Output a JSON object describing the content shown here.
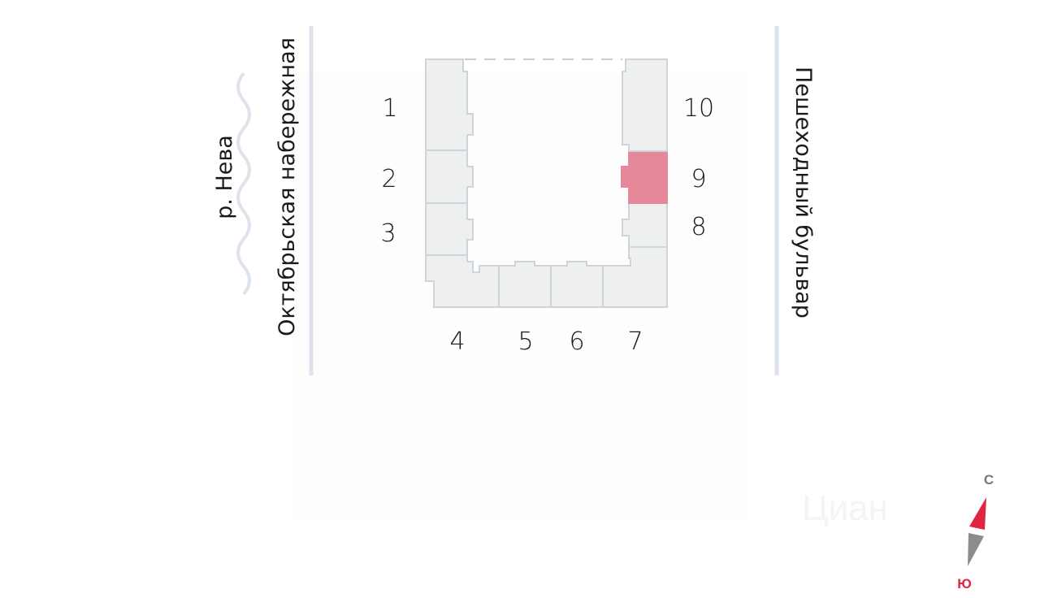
{
  "streets": {
    "left": "Октябрьская набережная",
    "river": "р. Нева",
    "right": "Пешеходный бульвар"
  },
  "sections": [
    {
      "label": "1",
      "selected": false
    },
    {
      "label": "2",
      "selected": false
    },
    {
      "label": "3",
      "selected": false
    },
    {
      "label": "4",
      "selected": false
    },
    {
      "label": "5",
      "selected": false
    },
    {
      "label": "6",
      "selected": false
    },
    {
      "label": "7",
      "selected": false
    },
    {
      "label": "8",
      "selected": false
    },
    {
      "label": "9",
      "selected": true
    },
    {
      "label": "10",
      "selected": false
    }
  ],
  "colors": {
    "selected": "#e5899a",
    "section": "#eeefef",
    "outline": "#cfd4dc",
    "compass_north": "#e0263f",
    "compass_south": "#8c8c8c"
  },
  "compass": {
    "north": "С",
    "south": "Ю"
  },
  "watermark": "Циан"
}
